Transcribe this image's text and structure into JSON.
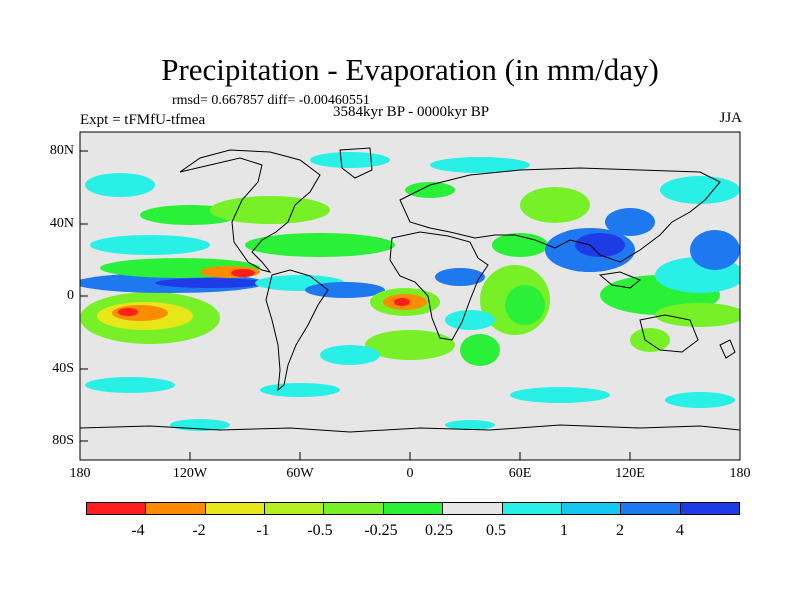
{
  "title": "Precipitation - Evaporation (in mm/day)",
  "stats_line": "rmsd= 0.667857  diff= -0.00460551",
  "period": "3584kyr BP - 0000kyr BP",
  "experiment": "Expt = tFMfU-tfmea",
  "season": "JJA",
  "lat_labels": [
    "80N",
    "40N",
    "0",
    "40S",
    "80S"
  ],
  "lon_labels": [
    "180",
    "120W",
    "60W",
    "0",
    "60E",
    "120E",
    "180"
  ],
  "colors": {
    "background": "#e6e6e6",
    "land_outline": "#000000",
    "scale": [
      "#ff1e1e",
      "#ff8c00",
      "#e6e619",
      "#b4ef1e",
      "#78f028",
      "#2bf038",
      "#e6e6e6",
      "#28f0e6",
      "#14c8f0",
      "#1e78f0",
      "#1e3ce6",
      "#2814dc",
      "#8c28f0"
    ]
  },
  "colorbar_labels": [
    "-4",
    "-2",
    "-1",
    "-0.5",
    "-0.25",
    "0.25",
    "0.5",
    "1",
    "2",
    "4"
  ]
}
